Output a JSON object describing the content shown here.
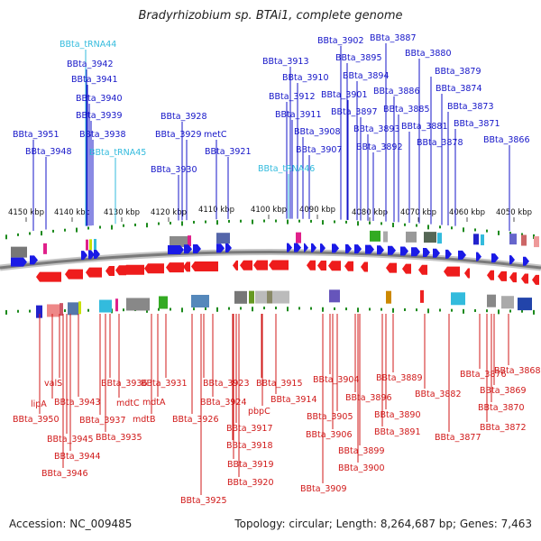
{
  "title": "Bradyrhizobium sp. BTAi1, complete genome",
  "footer": {
    "accession": "Accession: NC_009485",
    "topology": "Topology: circular; Length: 8,264,687 bp; Genes: 7,463"
  },
  "colors": {
    "top_label": "#1414c8",
    "trna_label": "#33bbdd",
    "bottom_label": "#d01818",
    "forward_gene": "#1a1ae6",
    "reverse_gene": "#ee1c1c",
    "tick": "#1c8a1c",
    "backbone": "#808080"
  },
  "scale_ticks": [
    "4150 kbp",
    "4140 kbp",
    "4130 kbp",
    "4120 kbp",
    "4110 kbp",
    "4100 kbp",
    "4090 kbp",
    "4080 kbp",
    "4070 kbp",
    "4060 kbp",
    "4050 kbp"
  ],
  "top_labels": [
    {
      "text": "BBta_tRNA44",
      "kind": "trna"
    },
    {
      "text": "BBta_3942"
    },
    {
      "text": "BBta_3941"
    },
    {
      "text": "BBta_3940"
    },
    {
      "text": "BBta_3939"
    },
    {
      "text": "BBta_3938"
    },
    {
      "text": "BBta_3951"
    },
    {
      "text": "BBta_3948"
    },
    {
      "text": "BBta_tRNA45",
      "kind": "trna"
    },
    {
      "text": "BBta_3928"
    },
    {
      "text": "BBta_3929"
    },
    {
      "text": "metC"
    },
    {
      "text": "BBta_3930"
    },
    {
      "text": "BBta_3921"
    },
    {
      "text": "BBta_3913"
    },
    {
      "text": "BBta_3910"
    },
    {
      "text": "BBta_3912"
    },
    {
      "text": "BBta_3911"
    },
    {
      "text": "BBta_3908"
    },
    {
      "text": "BBta_3907"
    },
    {
      "text": "BBta_tRNA46",
      "kind": "trna"
    },
    {
      "text": "BBta_3902"
    },
    {
      "text": "BBta_3895"
    },
    {
      "text": "BBta_3894"
    },
    {
      "text": "BBta_3901"
    },
    {
      "text": "BBta_3897"
    },
    {
      "text": "BBta_3893"
    },
    {
      "text": "BBta_3892"
    },
    {
      "text": "BBta_3887"
    },
    {
      "text": "BBta_3886"
    },
    {
      "text": "BBta_3885"
    },
    {
      "text": "BBta_3881"
    },
    {
      "text": "BBta_3880"
    },
    {
      "text": "BBta_3879"
    },
    {
      "text": "BBta_3874"
    },
    {
      "text": "BBta_3873"
    },
    {
      "text": "BBta_3871"
    },
    {
      "text": "BBta_3878"
    },
    {
      "text": "BBta_3866"
    }
  ],
  "bottom_labels": [
    {
      "text": "valS"
    },
    {
      "text": "lipA"
    },
    {
      "text": "BBta_3950"
    },
    {
      "text": "BBta_3943"
    },
    {
      "text": "BBta_3945"
    },
    {
      "text": "BBta_3944"
    },
    {
      "text": "BBta_3946"
    },
    {
      "text": "BBta_3936"
    },
    {
      "text": "mdtC"
    },
    {
      "text": "mdtA"
    },
    {
      "text": "BBta_3931"
    },
    {
      "text": "BBta_3937"
    },
    {
      "text": "mdtB"
    },
    {
      "text": "BBta_3935"
    },
    {
      "text": "BBta_3923"
    },
    {
      "text": "BBta_3924"
    },
    {
      "text": "BBta_3926"
    },
    {
      "text": "BBta_3917"
    },
    {
      "text": "BBta_3918"
    },
    {
      "text": "BBta_3919"
    },
    {
      "text": "BBta_3920"
    },
    {
      "text": "BBta_3925"
    },
    {
      "text": "BBta_3915"
    },
    {
      "text": "pbpC"
    },
    {
      "text": "BBta_3914"
    },
    {
      "text": "BBta_3904"
    },
    {
      "text": "BBta_3905"
    },
    {
      "text": "BBta_3906"
    },
    {
      "text": "BBta_3909"
    },
    {
      "text": "BBta_3896"
    },
    {
      "text": "BBta_3899"
    },
    {
      "text": "BBta_3900"
    },
    {
      "text": "BBta_3889"
    },
    {
      "text": "BBta_3890"
    },
    {
      "text": "BBta_3891"
    },
    {
      "text": "BBta_3882"
    },
    {
      "text": "BBta_3876"
    },
    {
      "text": "BBta_3877"
    },
    {
      "text": "BBta_3868"
    },
    {
      "text": "BBta_3869"
    },
    {
      "text": "BBta_3870"
    },
    {
      "text": "BBta_3872"
    }
  ]
}
